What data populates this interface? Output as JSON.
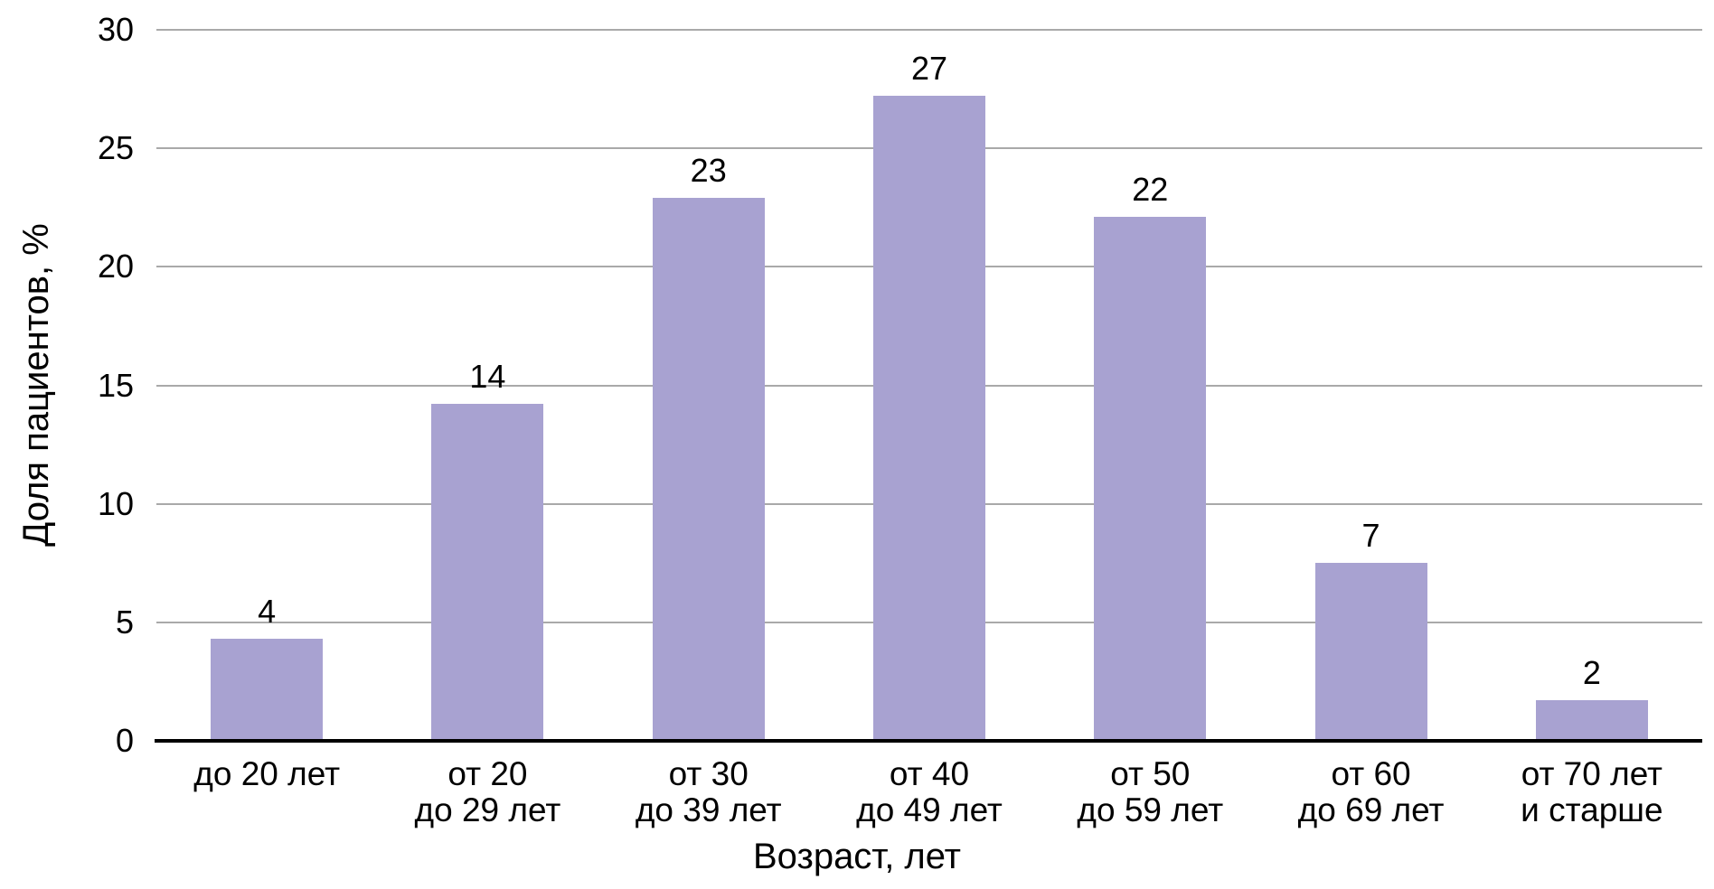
{
  "chart_data": {
    "type": "bar",
    "title": "",
    "xlabel": "Возраст, лет",
    "ylabel": "Доля пациентов, %",
    "categories": [
      [
        "до 20 лет"
      ],
      [
        "от 20",
        "до 29 лет"
      ],
      [
        "от 30",
        "до 39 лет"
      ],
      [
        "от 40",
        "до 49 лет"
      ],
      [
        "от 50",
        "до 59 лет"
      ],
      [
        "от 60",
        "до 69 лет"
      ],
      [
        "от 70 лет",
        "и старше"
      ]
    ],
    "values": [
      4,
      14,
      23,
      27,
      22,
      7,
      2
    ],
    "values_precise": [
      4.3,
      14.2,
      22.9,
      27.2,
      22.1,
      7.5,
      1.7
    ],
    "yticks": [
      0,
      5,
      10,
      15,
      20,
      25,
      30
    ],
    "ylim": [
      0,
      30
    ],
    "grid": true,
    "legend_position": "none",
    "bar_color": "#a8a2d1",
    "gridline_color": "#a9a9a9",
    "axis_color": "#000000",
    "text_color": "#000000"
  }
}
